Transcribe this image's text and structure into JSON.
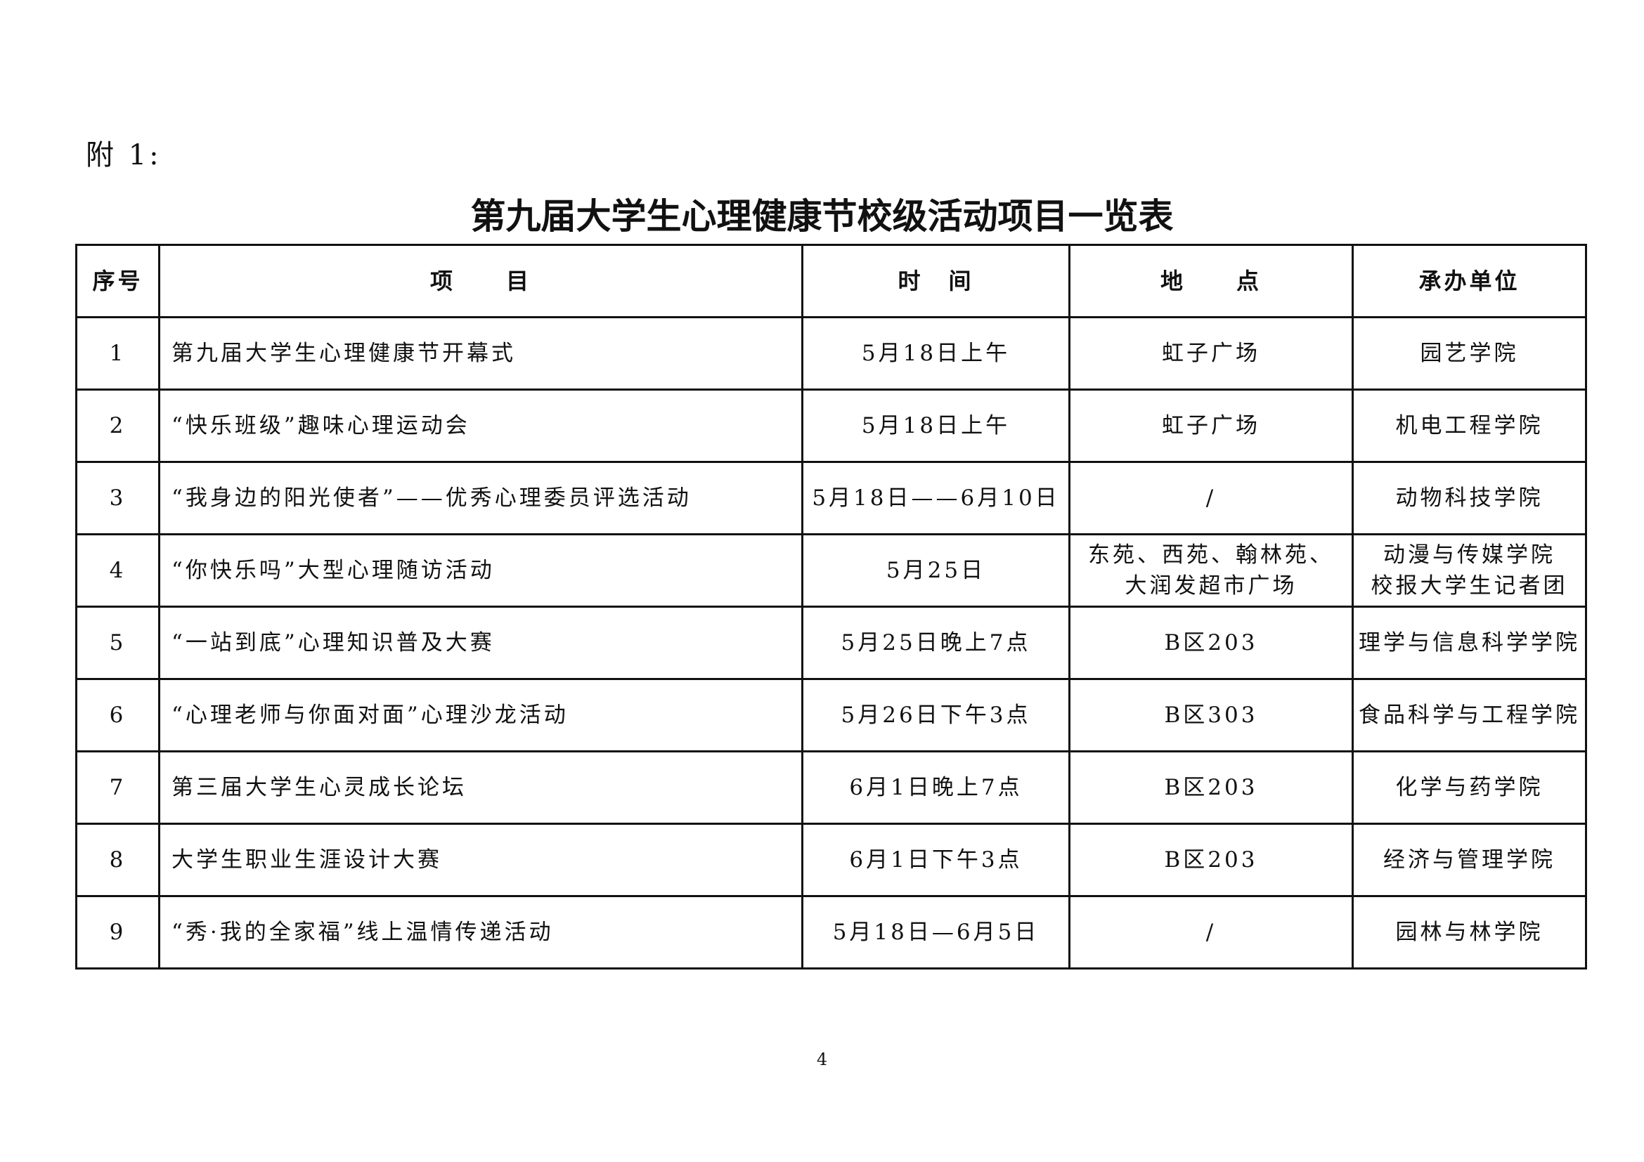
{
  "annex_label": "附 1:",
  "title": "第九届大学生心理健康节校级活动项目一览表",
  "table": {
    "headers": [
      "序号",
      "项　　目",
      "时　间",
      "地　　点",
      "承办单位"
    ],
    "rows": [
      {
        "no": "1",
        "item": "第九届大学生心理健康节开幕式",
        "time": "5月18日上午",
        "place": "虹子广场",
        "host": "园艺学院"
      },
      {
        "no": "2",
        "item": "“快乐班级”趣味心理运动会",
        "time": "5月18日上午",
        "place": "虹子广场",
        "host": "机电工程学院"
      },
      {
        "no": "3",
        "item": "“我身边的阳光使者”——优秀心理委员评选活动",
        "time": "5月18日——6月10日",
        "place": "/",
        "host": "动物科技学院"
      },
      {
        "no": "4",
        "item": "“你快乐吗”大型心理随访活动",
        "time": "5月25日",
        "place": "东苑、西苑、翰林苑、\n大润发超市广场",
        "host": "动漫与传媒学院\n校报大学生记者团"
      },
      {
        "no": "5",
        "item": "“一站到底”心理知识普及大赛",
        "time": "5月25日晚上7点",
        "place": "B区203",
        "host": "理学与信息科学学院"
      },
      {
        "no": "6",
        "item": "“心理老师与你面对面”心理沙龙活动",
        "time": "5月26日下午3点",
        "place": "B区303",
        "host": "食品科学与工程学院"
      },
      {
        "no": "7",
        "item": "第三届大学生心灵成长论坛",
        "time": "6月1日晚上7点",
        "place": "B区203",
        "host": "化学与药学院"
      },
      {
        "no": "8",
        "item": "大学生职业生涯设计大赛",
        "time": "6月1日下午3点",
        "place": "B区203",
        "host": "经济与管理学院"
      },
      {
        "no": "9",
        "item": "“秀·我的全家福”线上温情传递活动",
        "time": "5月18日—6月5日",
        "place": "/",
        "host": "园林与林学院"
      }
    ]
  },
  "page_number": "4"
}
